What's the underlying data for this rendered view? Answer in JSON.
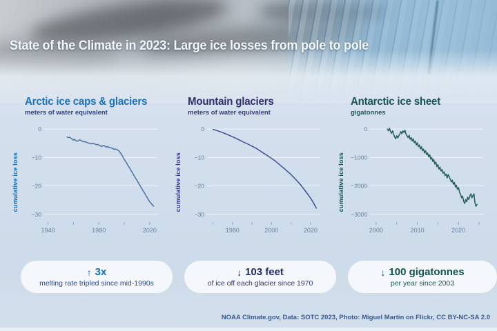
{
  "header": {
    "title": "State of the Climate in 2023: Large ice losses from pole to pole"
  },
  "chart_data": [
    {
      "type": "line",
      "title": "Arctic ice caps & glaciers",
      "subtitle": "meters of water equivalent",
      "ylabel": "cumulative ice loss",
      "title_color": "#1b72bb",
      "subtitle_color": "#2c418c",
      "ylabel_color": "#1b6cb0",
      "line_color": "#4c6fa3",
      "xlim": [
        1937,
        2026
      ],
      "ylim": [
        -32,
        1.5
      ],
      "yticks": [
        0,
        -10,
        -20,
        -30
      ],
      "xticks_major": [
        1940,
        1980,
        2020
      ],
      "xticks_minor": [
        1940,
        1960,
        1980,
        2000,
        2020
      ],
      "grid": "horizontal",
      "x": [
        1955,
        1956,
        1957,
        1958,
        1959,
        1960,
        1961,
        1962,
        1963,
        1964,
        1965,
        1966,
        1967,
        1968,
        1969,
        1970,
        1971,
        1972,
        1973,
        1974,
        1975,
        1976,
        1977,
        1978,
        1979,
        1980,
        1981,
        1982,
        1983,
        1984,
        1985,
        1986,
        1987,
        1988,
        1989,
        1990,
        1991,
        1992,
        1993,
        1994,
        1995,
        1996,
        1997,
        1998,
        1999,
        2000,
        2001,
        2002,
        2003,
        2004,
        2005,
        2006,
        2007,
        2008,
        2009,
        2010,
        2011,
        2012,
        2013,
        2014,
        2015,
        2016,
        2017,
        2018,
        2019,
        2020,
        2021,
        2022,
        2023
      ],
      "y": [
        -2.8,
        -3.0,
        -2.9,
        -3.2,
        -3.5,
        -3.9,
        -3.6,
        -4.1,
        -4.3,
        -4.0,
        -3.8,
        -4.0,
        -4.3,
        -4.5,
        -4.4,
        -4.6,
        -4.8,
        -4.9,
        -5.1,
        -5.2,
        -5.0,
        -5.1,
        -5.3,
        -5.5,
        -5.4,
        -5.6,
        -5.9,
        -6.1,
        -5.9,
        -5.8,
        -6.1,
        -6.4,
        -6.1,
        -6.5,
        -6.6,
        -6.6,
        -6.9,
        -7.1,
        -7.0,
        -7.2,
        -7.4,
        -7.8,
        -8.4,
        -9.1,
        -9.9,
        -10.7,
        -11.4,
        -12.1,
        -12.9,
        -13.6,
        -14.4,
        -15.1,
        -15.9,
        -16.6,
        -17.4,
        -18.1,
        -18.9,
        -19.6,
        -20.4,
        -21.1,
        -21.9,
        -22.6,
        -23.4,
        -24.1,
        -24.9,
        -25.6,
        -26.1,
        -26.6,
        -27.1
      ]
    },
    {
      "type": "line",
      "title": "Mountain glaciers",
      "subtitle": "meters of water equivalent",
      "ylabel": "cumulative ice loss",
      "title_color": "#312c6d",
      "subtitle_color": "#3a3a80",
      "ylabel_color": "#38368a",
      "line_color": "#3d4f94",
      "xlim": [
        1967,
        2025
      ],
      "ylim": [
        -32,
        1.5
      ],
      "yticks": [
        0,
        -10,
        -20,
        -30
      ],
      "xticks_major": [
        1980,
        2000,
        2020
      ],
      "xticks_minor": [
        1970,
        1980,
        1990,
        2000,
        2010,
        2020
      ],
      "grid": "horizontal",
      "x": [
        1970,
        1972,
        1974,
        1976,
        1978,
        1980,
        1982,
        1984,
        1986,
        1988,
        1990,
        1992,
        1994,
        1996,
        1998,
        2000,
        2002,
        2004,
        2006,
        2008,
        2010,
        2012,
        2014,
        2016,
        2018,
        2020,
        2021,
        2022,
        2023
      ],
      "y": [
        -0.1,
        -0.5,
        -1.0,
        -1.5,
        -2.1,
        -2.7,
        -3.3,
        -4.0,
        -4.7,
        -5.3,
        -6.0,
        -6.7,
        -7.6,
        -8.5,
        -9.4,
        -10.3,
        -11.3,
        -12.4,
        -13.6,
        -14.8,
        -16.0,
        -17.4,
        -18.9,
        -20.6,
        -22.4,
        -24.3,
        -25.4,
        -26.6,
        -27.8
      ]
    },
    {
      "type": "line",
      "title": "Antarctic ice sheet",
      "subtitle": "gigatonnes",
      "ylabel": "cumulative ice loss",
      "title_color": "#175450",
      "subtitle_color": "#1c5a55",
      "ylabel_color": "#17514d",
      "line_color": "#215c57",
      "xlim": [
        1998.5,
        2026
      ],
      "ylim": [
        -3200,
        150
      ],
      "yticks": [
        0,
        -1000,
        -2000,
        -3000
      ],
      "xticks_major": [
        2000,
        2010,
        2020
      ],
      "xticks_minor": [
        2000,
        2005,
        2010,
        2015,
        2020,
        2025
      ],
      "grid": "horizontal",
      "x_start": 2002.75,
      "x_step": 0.25,
      "y": [
        0,
        -60,
        30,
        -90,
        -150,
        -60,
        -190,
        -280,
        -340,
        -230,
        -310,
        -240,
        -180,
        -90,
        -160,
        -60,
        -120,
        -40,
        -180,
        -240,
        -300,
        -220,
        -360,
        -300,
        -420,
        -340,
        -480,
        -420,
        -560,
        -480,
        -620,
        -560,
        -700,
        -620,
        -760,
        -700,
        -840,
        -760,
        -900,
        -840,
        -980,
        -900,
        -1060,
        -1000,
        -1140,
        -1070,
        -1230,
        -1160,
        -1320,
        -1250,
        -1410,
        -1340,
        -1480,
        -1420,
        -1560,
        -1500,
        -1640,
        -1580,
        -1720,
        -1600,
        -1680,
        -1760,
        -1860,
        -1800,
        -1940,
        -1880,
        -2040,
        -1980,
        -2120,
        -2060,
        -2220,
        -2300,
        -2420,
        -2360,
        -2540,
        -2620,
        -2480,
        -2560,
        -2400,
        -2480,
        -2360,
        -2280,
        -2420,
        -2340,
        -2280,
        -2600,
        -2720,
        -2650
      ]
    }
  ],
  "stats": [
    {
      "arrow_glyph": "↑",
      "value": "3x",
      "description": "melting rate tripled since mid-1990s",
      "color": "#176fbe",
      "desc_color": "#2c4a8c"
    },
    {
      "arrow_glyph": "↓",
      "value": "103 feet",
      "description": "of ice off each glacier since 1970",
      "color": "#232a66",
      "desc_color": "#2c3a76"
    },
    {
      "arrow_glyph": "↓",
      "value": "100 gigatonnes",
      "description": "per year since 2003",
      "color": "#12504b",
      "desc_color": "#175a54"
    }
  ],
  "footer": {
    "credit": "NOAA Climate.gov, Data: SOTC 2023, Photo: Miguel Martín on Flickr, CC BY-NC-SA 2.0"
  }
}
